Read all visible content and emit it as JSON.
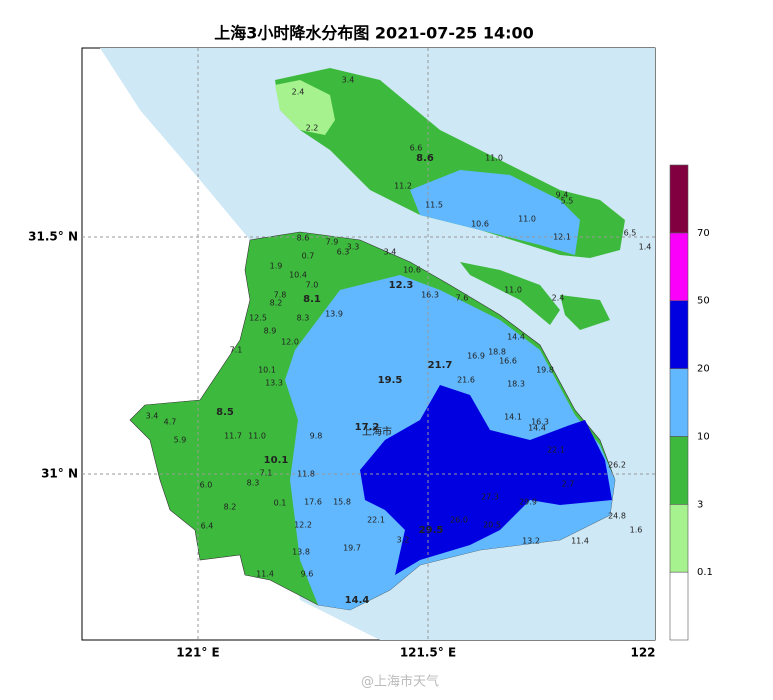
{
  "header": {
    "title": "上海3小时降水分布图 2021-07-25 14:00"
  },
  "axes": {
    "lat_labels": [
      "31.5° N",
      "31° N"
    ],
    "lon_labels": [
      "121° E",
      "121.5° E",
      "122"
    ]
  },
  "district_label": "上海市",
  "stations": [
    "3.4",
    "2.4",
    "2.2",
    "6.6",
    "8.6",
    "11.0",
    "11.2",
    "11.5",
    "9.4",
    "5.5",
    "10.6",
    "11.0",
    "12.1",
    "6.5",
    "1.4",
    "11.0",
    "2.4",
    "7.6",
    "8.6",
    "7.9",
    "3.3",
    "0.7",
    "6.3",
    "3.4",
    "1.9",
    "10.4",
    "10.6",
    "7.0",
    "7.8",
    "8.1",
    "12.3",
    "16.3",
    "8.2",
    "8.3",
    "13.9",
    "12.5",
    "8.9",
    "12.0",
    "14.4",
    "18.8",
    "16.6",
    "21.7",
    "16.9",
    "7.1",
    "10.1",
    "13.3",
    "19.5",
    "21.6",
    "18.3",
    "19.8",
    "3.4",
    "4.7",
    "8.5",
    "14.1",
    "16.3",
    "14.4",
    "17.2",
    "9.8",
    "11.7",
    "11.0",
    "5.9",
    "10.1",
    "11.8",
    "22.1",
    "26.2",
    "27.3",
    "29.9",
    "8.3",
    "7.1",
    "0.1",
    "17.6",
    "15.8",
    "22.1",
    "29.5",
    "26.0",
    "20.5",
    "12.2",
    "24.8",
    "1.6",
    "3.2",
    "13.2",
    "11.4",
    "19.7",
    "13.8",
    "11.4",
    "9.6",
    "14.4",
    "6.0",
    "6.4",
    "8.2",
    "2.7"
  ],
  "colorbar": {
    "levels": [
      0.1,
      3,
      10,
      20,
      50,
      70
    ],
    "colors": [
      "#ffffff",
      "#a6f28f",
      "#3dba3d",
      "#61b8ff",
      "#0000e1",
      "#fa00fa",
      "#800040"
    ]
  },
  "watermark": "@上海市天气"
}
